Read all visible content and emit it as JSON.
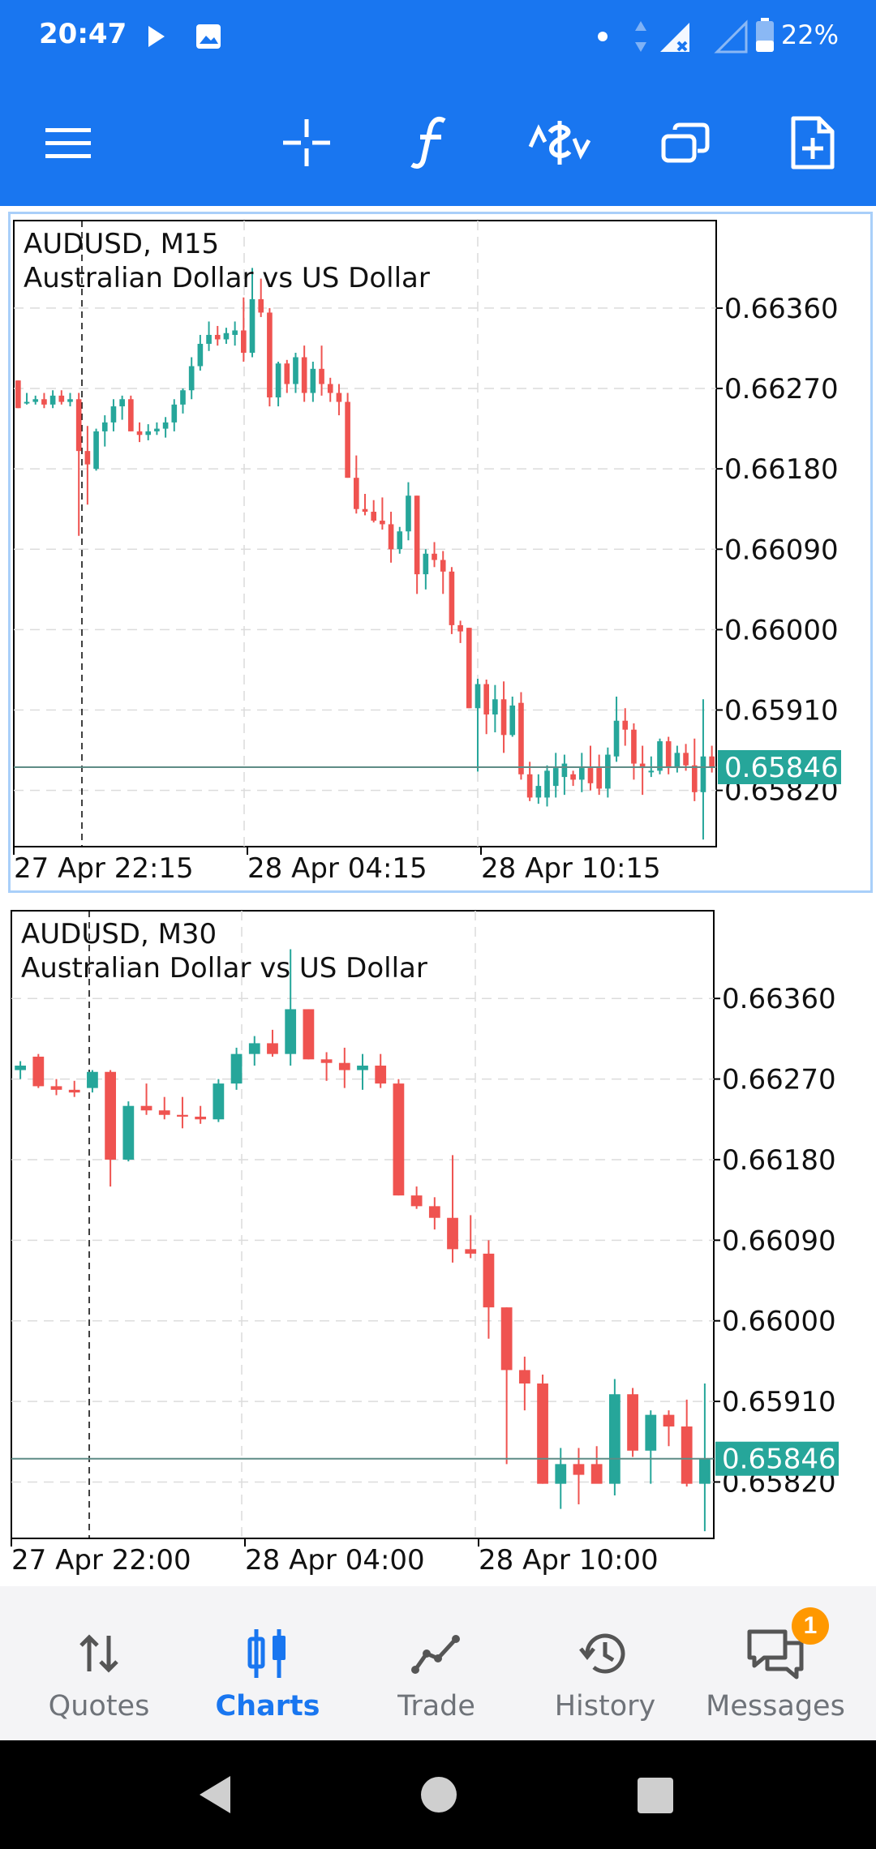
{
  "status_bar": {
    "time": "20:47",
    "battery_percent": "22%",
    "icons": [
      "play-icon",
      "image-icon",
      "dot-icon",
      "data-arrows-icon",
      "signal-icon",
      "signal-empty-icon",
      "battery-icon"
    ]
  },
  "toolbar": {
    "icons": [
      "menu-icon",
      "crosshair-icon",
      "indicators-icon",
      "trade-icon",
      "windows-icon",
      "new-order-icon"
    ]
  },
  "charts": [
    {
      "symbol_line": "AUDUSD, M15",
      "description": "Australian Dollar vs US Dollar",
      "price_labels": [
        "0.66360",
        "0.66270",
        "0.66180",
        "0.66090",
        "0.66000",
        "0.65910",
        "0.65820"
      ],
      "current_price": "0.65846",
      "time_labels": [
        "27 Apr 22:15",
        "28 Apr 04:15",
        "28 Apr 10:15"
      ],
      "active": true
    },
    {
      "symbol_line": "AUDUSD, M30",
      "description": "Australian Dollar vs US Dollar",
      "price_labels": [
        "0.66360",
        "0.66270",
        "0.66180",
        "0.66090",
        "0.66000",
        "0.65910",
        "0.65820"
      ],
      "current_price": "0.65846",
      "time_labels": [
        "27 Apr 22:00",
        "28 Apr 04:00",
        "28 Apr 10:00"
      ],
      "active": false
    }
  ],
  "colors": {
    "bull": "#26a69a",
    "bear": "#ef5350",
    "accent": "#1976f0",
    "badge": "#ff9800"
  },
  "bottom_nav": {
    "items": [
      {
        "label": "Quotes",
        "icon": "quotes-icon",
        "active": false
      },
      {
        "label": "Charts",
        "icon": "charts-icon",
        "active": true
      },
      {
        "label": "Trade",
        "icon": "trade-line-icon",
        "active": false
      },
      {
        "label": "History",
        "icon": "history-icon",
        "active": false
      },
      {
        "label": "Messages",
        "icon": "messages-icon",
        "active": false
      }
    ],
    "messages_badge": "1"
  },
  "system_nav": {
    "icons": [
      "back-icon",
      "home-icon",
      "recents-icon"
    ]
  },
  "chart_data": [
    {
      "type": "candlestick",
      "title": "AUDUSD, M15",
      "subtitle": "Australian Dollar vs US Dollar",
      "ylim": [
        0.65757,
        0.66458
      ],
      "y_ticks": [
        0.6636,
        0.6627,
        0.6618,
        0.6609,
        0.66,
        0.6591,
        0.6582
      ],
      "x_tick_labels": [
        "27 Apr 22:15",
        "28 Apr 04:15",
        "28 Apr 10:15"
      ],
      "current_price": 0.65846,
      "grid": true,
      "candles": [
        [
          0.66279,
          0.66279,
          0.66248,
          0.66248
        ],
        [
          0.66255,
          0.66265,
          0.66252,
          0.66255
        ],
        [
          0.66255,
          0.66262,
          0.66252,
          0.66258
        ],
        [
          0.66258,
          0.66265,
          0.66248,
          0.66252
        ],
        [
          0.66252,
          0.66268,
          0.66248,
          0.66262
        ],
        [
          0.66262,
          0.66268,
          0.66252,
          0.66255
        ],
        [
          0.66255,
          0.66265,
          0.6625,
          0.66258
        ],
        [
          0.66258,
          0.66265,
          0.66105,
          0.662
        ],
        [
          0.662,
          0.66228,
          0.6614,
          0.66185
        ],
        [
          0.6618,
          0.66225,
          0.66178,
          0.66222
        ],
        [
          0.66222,
          0.6624,
          0.66205,
          0.66232
        ],
        [
          0.66232,
          0.66258,
          0.66222,
          0.6625
        ],
        [
          0.6625,
          0.66262,
          0.66235,
          0.66258
        ],
        [
          0.66258,
          0.66262,
          0.66222,
          0.66222
        ],
        [
          0.66222,
          0.66232,
          0.6621,
          0.66218
        ],
        [
          0.66218,
          0.6623,
          0.66212,
          0.66222
        ],
        [
          0.66222,
          0.66232,
          0.66218,
          0.66225
        ],
        [
          0.66225,
          0.66238,
          0.66215,
          0.66232
        ],
        [
          0.66232,
          0.66258,
          0.66222,
          0.66252
        ],
        [
          0.66252,
          0.6627,
          0.66242,
          0.66268
        ],
        [
          0.66268,
          0.66305,
          0.66258,
          0.66295
        ],
        [
          0.66295,
          0.6633,
          0.6629,
          0.6632
        ],
        [
          0.6632,
          0.66345,
          0.66312,
          0.6633
        ],
        [
          0.6633,
          0.6634,
          0.66318,
          0.66325
        ],
        [
          0.66325,
          0.66338,
          0.6632,
          0.66332
        ],
        [
          0.6633,
          0.66345,
          0.66318,
          0.66335
        ],
        [
          0.66335,
          0.66372,
          0.663,
          0.6631
        ],
        [
          0.6631,
          0.66405,
          0.66305,
          0.6637
        ],
        [
          0.6637,
          0.66393,
          0.6635,
          0.66355
        ],
        [
          0.66355,
          0.6636,
          0.6625,
          0.6626
        ],
        [
          0.6626,
          0.663,
          0.6625,
          0.66298
        ],
        [
          0.66298,
          0.66302,
          0.66265,
          0.66275
        ],
        [
          0.66275,
          0.6631,
          0.66265,
          0.66305
        ],
        [
          0.66305,
          0.66318,
          0.66255,
          0.66265
        ],
        [
          0.66265,
          0.663,
          0.66255,
          0.66292
        ],
        [
          0.66292,
          0.66318,
          0.66262,
          0.66275
        ],
        [
          0.66275,
          0.66282,
          0.66255,
          0.66265
        ],
        [
          0.66265,
          0.66275,
          0.6624,
          0.66255
        ],
        [
          0.66255,
          0.66265,
          0.6617,
          0.6617
        ],
        [
          0.6617,
          0.66195,
          0.6613,
          0.66135
        ],
        [
          0.66135,
          0.66152,
          0.66128,
          0.66132
        ],
        [
          0.66132,
          0.66145,
          0.6612,
          0.66122
        ],
        [
          0.66122,
          0.66148,
          0.66112,
          0.66118
        ],
        [
          0.66118,
          0.66132,
          0.66075,
          0.6609
        ],
        [
          0.6609,
          0.66115,
          0.66085,
          0.6611
        ],
        [
          0.6611,
          0.66165,
          0.661,
          0.6615
        ],
        [
          0.6615,
          0.6615,
          0.6604,
          0.66062
        ],
        [
          0.66062,
          0.6609,
          0.66045,
          0.66085
        ],
        [
          0.66085,
          0.66098,
          0.6607,
          0.66078
        ],
        [
          0.66078,
          0.66088,
          0.6604,
          0.66065
        ],
        [
          0.66065,
          0.6607,
          0.65995,
          0.66005
        ],
        [
          0.66005,
          0.6601,
          0.65985,
          0.65998
        ],
        [
          0.66002,
          0.66002,
          0.65912,
          0.65912
        ],
        [
          0.65912,
          0.65945,
          0.65841,
          0.65939
        ],
        [
          0.65939,
          0.65944,
          0.65883,
          0.65905
        ],
        [
          0.65905,
          0.65938,
          0.65885,
          0.65922
        ],
        [
          0.65922,
          0.65942,
          0.65862,
          0.65882
        ],
        [
          0.65882,
          0.65925,
          0.6588,
          0.65915
        ],
        [
          0.65918,
          0.6593,
          0.65832,
          0.65838
        ],
        [
          0.65838,
          0.65852,
          0.65808,
          0.65812
        ],
        [
          0.65812,
          0.65838,
          0.65805,
          0.65825
        ],
        [
          0.65812,
          0.65848,
          0.65802,
          0.65842
        ],
        [
          0.65825,
          0.65862,
          0.65812,
          0.65845
        ],
        [
          0.65835,
          0.6586,
          0.65815,
          0.6585
        ],
        [
          0.65838,
          0.65842,
          0.65825,
          0.65832
        ],
        [
          0.65832,
          0.65862,
          0.65818,
          0.65845
        ],
        [
          0.65845,
          0.6587,
          0.6582,
          0.65828
        ],
        [
          0.65845,
          0.6586,
          0.65815,
          0.65822
        ],
        [
          0.65822,
          0.65868,
          0.65812,
          0.6586
        ],
        [
          0.65858,
          0.65925,
          0.65852,
          0.65898
        ],
        [
          0.65898,
          0.65912,
          0.6587,
          0.65888
        ],
        [
          0.65888,
          0.65895,
          0.65832,
          0.6585
        ],
        [
          0.6585,
          0.6587,
          0.65815,
          0.65845
        ],
        [
          0.65842,
          0.65858,
          0.65835,
          0.65842
        ],
        [
          0.65842,
          0.65878,
          0.65838,
          0.65875
        ],
        [
          0.65875,
          0.6588,
          0.65838,
          0.65845
        ],
        [
          0.65845,
          0.6587,
          0.6584,
          0.65862
        ],
        [
          0.65862,
          0.65872,
          0.65842,
          0.65848
        ],
        [
          0.65848,
          0.65878,
          0.65808,
          0.65818
        ],
        [
          0.65818,
          0.65922,
          0.65765,
          0.65858
        ],
        [
          0.65858,
          0.6587,
          0.6584,
          0.65846
        ]
      ]
    },
    {
      "type": "candlestick",
      "title": "AUDUSD, M30",
      "subtitle": "Australian Dollar vs US Dollar",
      "ylim": [
        0.65757,
        0.66458
      ],
      "y_ticks": [
        0.6636,
        0.6627,
        0.6618,
        0.6609,
        0.66,
        0.6591,
        0.6582
      ],
      "x_tick_labels": [
        "27 Apr 22:00",
        "28 Apr 04:00",
        "28 Apr 10:00"
      ],
      "current_price": 0.65846,
      "grid": true,
      "candles": [
        [
          0.6628,
          0.6629,
          0.6627,
          0.66285
        ],
        [
          0.66295,
          0.66298,
          0.6626,
          0.66262
        ],
        [
          0.66262,
          0.6627,
          0.66252,
          0.66258
        ],
        [
          0.66258,
          0.66268,
          0.6625,
          0.66255
        ],
        [
          0.6626,
          0.6628,
          0.66255,
          0.66278
        ],
        [
          0.66278,
          0.6628,
          0.6615,
          0.6618
        ],
        [
          0.6618,
          0.66245,
          0.66178,
          0.6624
        ],
        [
          0.6624,
          0.66265,
          0.6623,
          0.66235
        ],
        [
          0.66235,
          0.6625,
          0.66225,
          0.6623
        ],
        [
          0.6623,
          0.6625,
          0.66215,
          0.66228
        ],
        [
          0.66228,
          0.6624,
          0.6622,
          0.66225
        ],
        [
          0.66225,
          0.6627,
          0.66222,
          0.66265
        ],
        [
          0.66265,
          0.66305,
          0.66258,
          0.66298
        ],
        [
          0.66298,
          0.66318,
          0.66285,
          0.6631
        ],
        [
          0.6631,
          0.66325,
          0.66295,
          0.66298
        ],
        [
          0.66298,
          0.66415,
          0.66285,
          0.66348
        ],
        [
          0.66348,
          0.66348,
          0.66292,
          0.66292
        ],
        [
          0.66292,
          0.663,
          0.66268,
          0.66288
        ],
        [
          0.66288,
          0.66305,
          0.6626,
          0.6628
        ],
        [
          0.6628,
          0.66298,
          0.66258,
          0.66285
        ],
        [
          0.66285,
          0.66298,
          0.6626,
          0.66265
        ],
        [
          0.66265,
          0.6627,
          0.6614,
          0.6614
        ],
        [
          0.6614,
          0.6615,
          0.66125,
          0.66128
        ],
        [
          0.66128,
          0.66138,
          0.66102,
          0.66115
        ],
        [
          0.66115,
          0.66185,
          0.66065,
          0.6608
        ],
        [
          0.6608,
          0.66118,
          0.6607,
          0.66075
        ],
        [
          0.66075,
          0.6609,
          0.6598,
          0.66015
        ],
        [
          0.66015,
          0.66015,
          0.6584,
          0.65945
        ],
        [
          0.65945,
          0.6596,
          0.659,
          0.6593
        ],
        [
          0.6593,
          0.6594,
          0.65818,
          0.65818
        ],
        [
          0.65818,
          0.65858,
          0.6579,
          0.6584
        ],
        [
          0.6584,
          0.65858,
          0.65795,
          0.65828
        ],
        [
          0.6584,
          0.6586,
          0.6582,
          0.65818
        ],
        [
          0.65818,
          0.65935,
          0.65805,
          0.65918
        ],
        [
          0.65918,
          0.65925,
          0.65848,
          0.65855
        ],
        [
          0.65855,
          0.659,
          0.65818,
          0.65895
        ],
        [
          0.65895,
          0.659,
          0.6586,
          0.65882
        ],
        [
          0.65882,
          0.65912,
          0.65815,
          0.65818
        ],
        [
          0.65818,
          0.6593,
          0.65765,
          0.65846
        ]
      ]
    }
  ]
}
